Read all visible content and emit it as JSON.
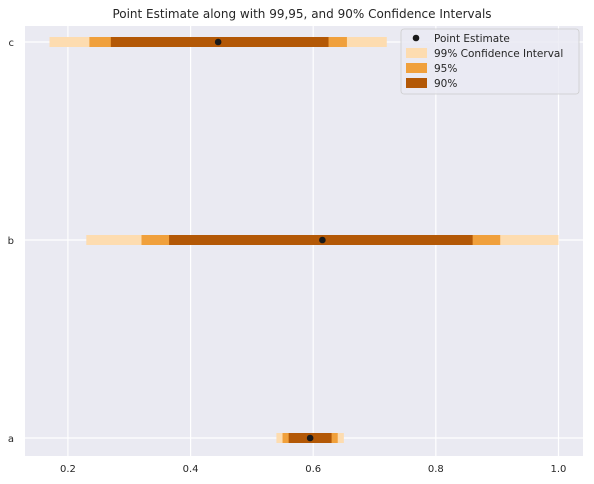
{
  "chart_data": {
    "type": "interval",
    "title": "Point Estimate along with 99,95, and 90% Confidence Intervals",
    "xlabel": "",
    "ylabel": "",
    "xlim": [
      0.13,
      1.04
    ],
    "xticks": [
      "0.2",
      "0.4",
      "0.6",
      "0.8",
      "1.0"
    ],
    "grid": true,
    "legend_position": "top-right",
    "categories": [
      "a",
      "b",
      "c"
    ],
    "series": [
      {
        "name": "99% Confidence Interval",
        "color": "#fddcb0",
        "lower": [
          0.54,
          0.23,
          0.17
        ],
        "upper": [
          0.65,
          1.0,
          0.72
        ]
      },
      {
        "name": "95%",
        "color": "#f0a03c",
        "lower": [
          0.55,
          0.32,
          0.235
        ],
        "upper": [
          0.64,
          0.905,
          0.655
        ]
      },
      {
        "name": "90%",
        "color": "#b35806",
        "lower": [
          0.56,
          0.365,
          0.27
        ],
        "upper": [
          0.63,
          0.86,
          0.625
        ]
      }
    ],
    "point_estimate": {
      "name": "Point Estimate",
      "color": "#1a1a1a",
      "values": [
        0.595,
        0.615,
        0.445
      ]
    },
    "plot_background": "#eaeaf2",
    "grid_color": "#ffffff"
  }
}
